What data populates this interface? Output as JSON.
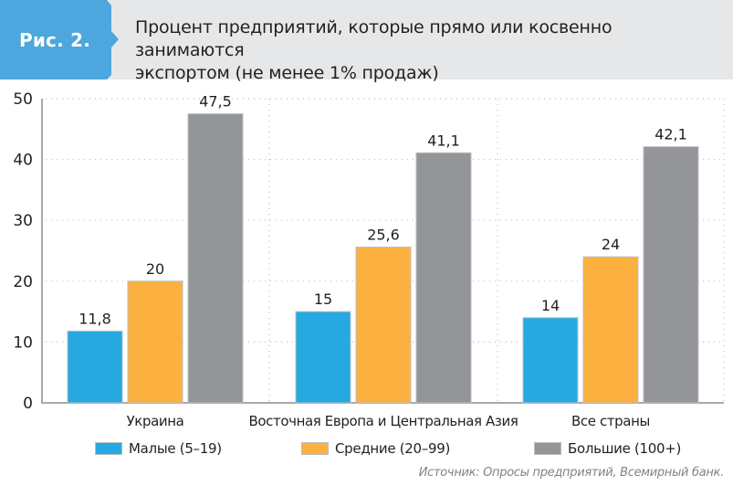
{
  "header": {
    "figure_label": "Рис. 2.",
    "title_line1": "Процент предприятий, которые прямо или косвенно занимаются",
    "title_line2": "экспортом (не менее 1% продаж)",
    "accent_color": "#4da6dd",
    "band_color": "#e6e7e8"
  },
  "source": "Источник: Опросы предприятий, Всемирный банк.",
  "chart_data": {
    "type": "bar",
    "title": "Процент предприятий, которые прямо или косвенно занимаются экспортом (не менее 1% продаж)",
    "xlabel": "",
    "ylabel": "",
    "categories": [
      "Украина",
      "Восточная Европа и Центральная Азия",
      "Все страны"
    ],
    "series": [
      {
        "name": "Малые (5–19)",
        "color": "#26a9e0",
        "values": [
          11.8,
          15,
          14
        ],
        "labels": [
          "11,8",
          "15",
          "14"
        ]
      },
      {
        "name": "Средние (20–99)",
        "color": "#fbb040",
        "values": [
          20,
          25.6,
          24
        ],
        "labels": [
          "20",
          "25,6",
          "24"
        ]
      },
      {
        "name": "Большие (100+)",
        "color": "#939598",
        "values": [
          47.5,
          41.1,
          42.1
        ],
        "labels": [
          "47,5",
          "41,1",
          "42,1"
        ]
      }
    ],
    "ylim": [
      0,
      50
    ],
    "yticks": [
      0,
      10,
      20,
      30,
      40,
      50
    ],
    "ytick_labels": [
      "0",
      "10",
      "20",
      "30",
      "40",
      "50"
    ],
    "grid": true,
    "legend_position": "bottom"
  }
}
